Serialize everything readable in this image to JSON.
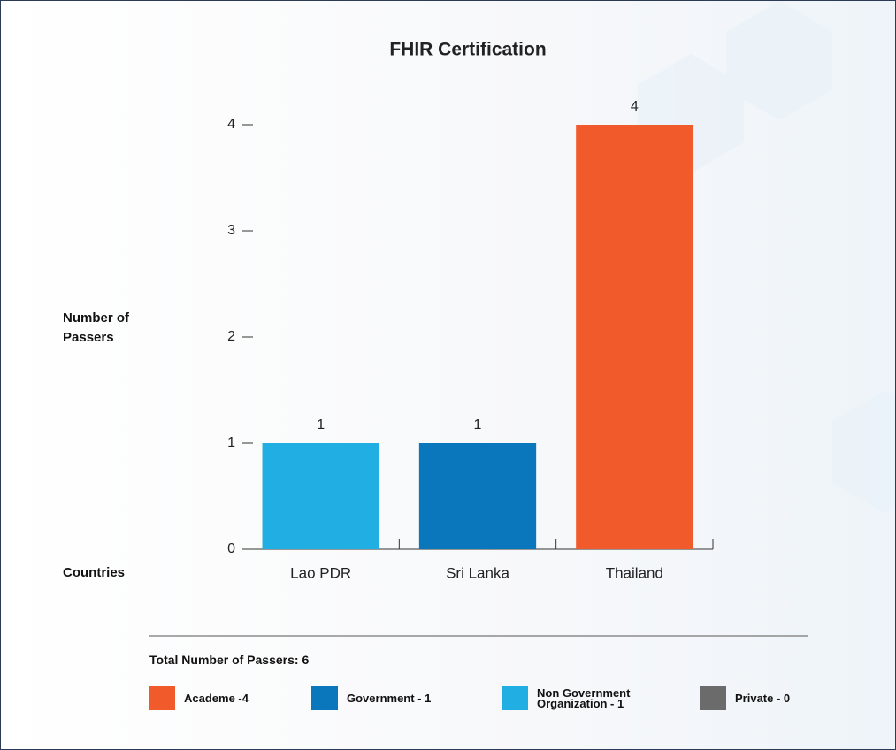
{
  "chart_data": {
    "type": "bar",
    "title": "FHIR Certification",
    "y_label": "Number of Passers",
    "x_label": "Countries",
    "categories": [
      "Lao PDR",
      "Sri Lanka",
      "Thailand"
    ],
    "values": [
      1,
      1,
      4
    ],
    "colors": [
      "#21aee3",
      "#0a76bb",
      "#f15a2b"
    ],
    "ylim": [
      0,
      4
    ],
    "yticks": [
      0,
      1,
      2,
      3,
      4
    ],
    "grid": false,
    "summary": "Total Number of Passers: 6",
    "legend": [
      {
        "label": "Academe -4",
        "color": "#f15a2b"
      },
      {
        "label": "Government - 1",
        "color": "#0a76bb"
      },
      {
        "label": "Non Government Organization - 1",
        "color": "#21aee3"
      },
      {
        "label": "Private - 0",
        "color": "#6b6b6b"
      }
    ]
  }
}
